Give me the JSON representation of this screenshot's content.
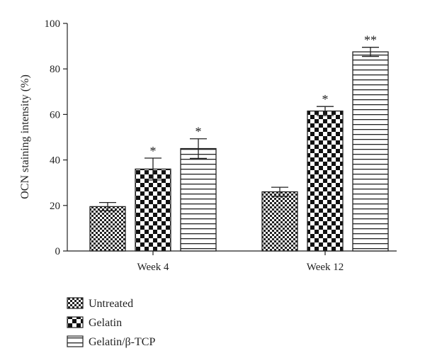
{
  "chart_data": {
    "type": "bar",
    "categories": [
      "Week 4",
      "Week 12"
    ],
    "series": [
      {
        "name": "Untreated",
        "pattern": "fine-check",
        "values": [
          19.5,
          26
        ],
        "errors": [
          1.8,
          2.0
        ],
        "significance": [
          "",
          ""
        ]
      },
      {
        "name": "Gelatin",
        "pattern": "coarse-check",
        "values": [
          36,
          61.5
        ],
        "errors": [
          4.8,
          2.0
        ],
        "significance": [
          "*",
          "*"
        ]
      },
      {
        "name": "Gelatin/β-TCP",
        "pattern": "horizontal-lines",
        "values": [
          45,
          87.5
        ],
        "errors": [
          4.3,
          2.0
        ],
        "significance": [
          "*",
          "**"
        ]
      }
    ],
    "ylabel": "OCN staining intensity (%)",
    "ylim": [
      0,
      100
    ],
    "yticks": [
      0,
      20,
      40,
      60,
      80,
      100
    ],
    "grid": false,
    "legend_position": "bottom-left",
    "colors": {
      "ink": "#222222",
      "background": "#ffffff"
    }
  }
}
